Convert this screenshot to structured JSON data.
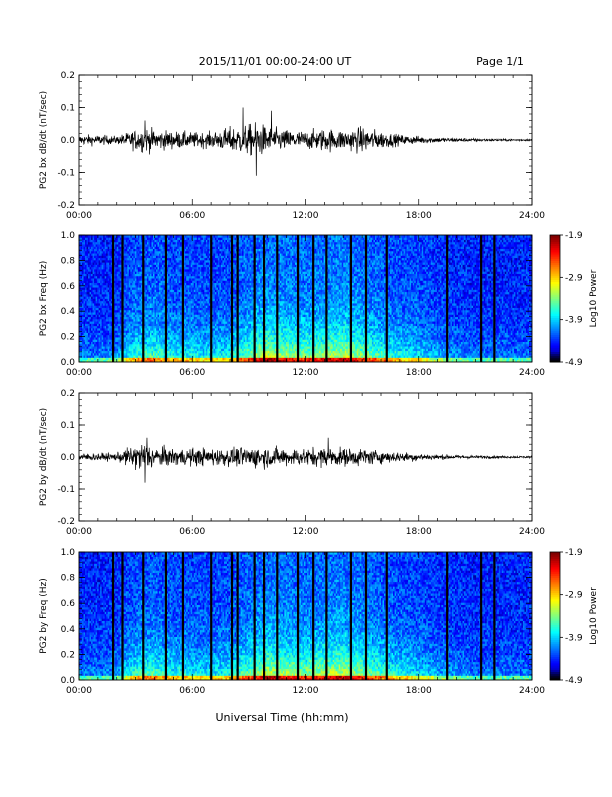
{
  "header": {
    "title": "2015/11/01  00:00-24:00 UT",
    "page": "Page 1/1"
  },
  "footer": {
    "xlabel": "Universal Time (hh:mm)"
  },
  "chart_data": [
    {
      "type": "line",
      "ylabel": "PG2 bx dB/dt (nT/sec)",
      "xlim": [
        "00:00",
        "24:00"
      ],
      "xticks": [
        "00:00",
        "06:00",
        "12:00",
        "18:00",
        "24:00"
      ],
      "ylim": [
        -0.2,
        0.2
      ],
      "yticks": [
        "0.2",
        "0.1",
        "0.0",
        "-0.1",
        "-0.2"
      ],
      "envelope": {
        "hours": [
          0,
          1,
          2,
          3,
          3.5,
          4,
          5,
          6,
          7,
          8,
          9,
          9.5,
          10,
          11,
          12,
          13,
          14,
          15,
          16,
          17,
          18,
          19,
          20,
          21,
          22,
          23,
          24
        ],
        "amplitude": [
          0.02,
          0.02,
          0.015,
          0.04,
          0.05,
          0.04,
          0.035,
          0.03,
          0.03,
          0.05,
          0.06,
          0.07,
          0.05,
          0.04,
          0.035,
          0.045,
          0.04,
          0.05,
          0.035,
          0.02,
          0.015,
          0.01,
          0.008,
          0.006,
          0.005,
          0.004,
          0.004
        ]
      },
      "peaks": [
        {
          "hour": 9.4,
          "value": -0.11
        },
        {
          "hour": 8.7,
          "value": 0.1
        },
        {
          "hour": 10.2,
          "value": 0.09
        },
        {
          "hour": 3.5,
          "value": 0.06
        }
      ]
    },
    {
      "type": "heatmap",
      "ylabel": "PG2 bx Freq (Hz)",
      "xlim": [
        "00:00",
        "24:00"
      ],
      "xticks": [
        "00:00",
        "06:00",
        "12:00",
        "18:00",
        "24:00"
      ],
      "ylim": [
        0.0,
        1.0
      ],
      "yticks": [
        "1.0",
        "0.8",
        "0.6",
        "0.4",
        "0.2",
        "0.0"
      ],
      "colorbar": {
        "label": "Log10 Power",
        "ticks": [
          "-1.9",
          "-2.9",
          "-3.9",
          "-4.9"
        ],
        "range": [
          -4.9,
          -1.9
        ]
      },
      "gap_hours": [
        1.8,
        2.3,
        3.4,
        4.6,
        5.5,
        7.0,
        8.1,
        8.4,
        9.3,
        9.8,
        10.5,
        11.6,
        12.4,
        13.1,
        14.4,
        15.2,
        16.3,
        19.5,
        21.3,
        22.0
      ]
    },
    {
      "type": "line",
      "ylabel": "PG2 by dB/dt (nT/sec)",
      "xlim": [
        "00:00",
        "24:00"
      ],
      "xticks": [
        "00:00",
        "06:00",
        "12:00",
        "18:00",
        "24:00"
      ],
      "ylim": [
        -0.2,
        0.2
      ],
      "yticks": [
        "0.2",
        "0.1",
        "0.0",
        "-0.1",
        "-0.2"
      ],
      "envelope": {
        "hours": [
          0,
          1,
          2,
          3,
          3.5,
          4,
          5,
          6,
          7,
          8,
          9,
          9.5,
          10,
          11,
          12,
          13,
          14,
          15,
          16,
          17,
          18,
          19,
          20,
          21,
          22,
          23,
          24
        ],
        "amplitude": [
          0.015,
          0.015,
          0.015,
          0.05,
          0.06,
          0.04,
          0.035,
          0.035,
          0.035,
          0.035,
          0.04,
          0.045,
          0.04,
          0.035,
          0.035,
          0.04,
          0.035,
          0.035,
          0.025,
          0.02,
          0.015,
          0.01,
          0.008,
          0.006,
          0.005,
          0.004,
          0.004
        ]
      },
      "peaks": [
        {
          "hour": 3.5,
          "value": -0.08
        },
        {
          "hour": 3.6,
          "value": 0.06
        },
        {
          "hour": 13.2,
          "value": 0.06
        }
      ]
    },
    {
      "type": "heatmap",
      "ylabel": "PG2 by Freq (Hz)",
      "xlim": [
        "00:00",
        "24:00"
      ],
      "xticks": [
        "00:00",
        "06:00",
        "12:00",
        "18:00",
        "24:00"
      ],
      "ylim": [
        0.0,
        1.0
      ],
      "yticks": [
        "1.0",
        "0.8",
        "0.6",
        "0.4",
        "0.2",
        "0.0"
      ],
      "colorbar": {
        "label": "Log10 Power",
        "ticks": [
          "-1.9",
          "-2.9",
          "-3.9",
          "-4.9"
        ],
        "range": [
          -4.9,
          -1.9
        ]
      },
      "gap_hours": [
        1.8,
        2.3,
        3.4,
        4.6,
        5.5,
        7.0,
        8.1,
        8.4,
        9.3,
        9.8,
        10.5,
        11.6,
        12.4,
        13.1,
        14.4,
        15.2,
        16.3,
        19.5,
        21.3,
        22.0
      ]
    }
  ]
}
